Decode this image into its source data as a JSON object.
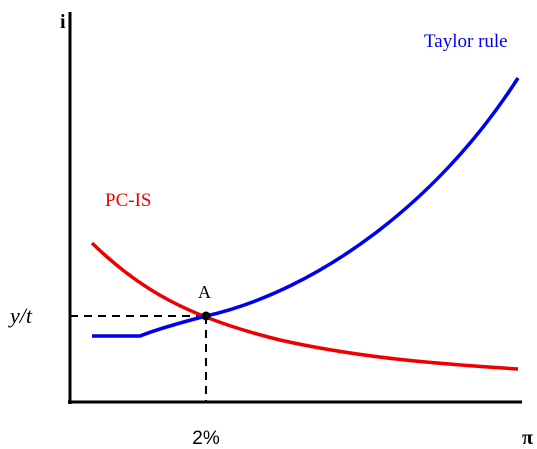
{
  "axes": {
    "y_label": "i",
    "x_label": "π"
  },
  "curves": {
    "taylor": "Taylor rule",
    "pc_is": "PC-IS"
  },
  "point": {
    "label": "A",
    "y_label": "y/t",
    "x_label": "2%"
  }
}
